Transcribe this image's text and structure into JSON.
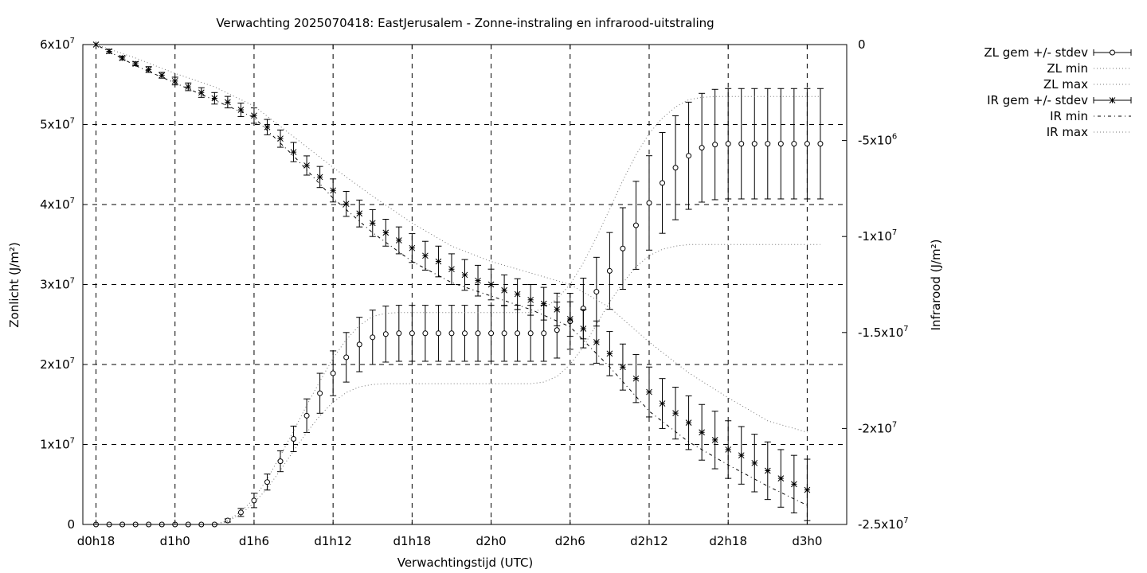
{
  "chart_data": {
    "type": "line",
    "title": "Verwachting 2025070418: EastJerusalem - Zonne-instraling en infrarood-uitstraling",
    "xlabel": "Verwachtingstijd (UTC)",
    "ylabel_left": "Zonlicht (J/m²)",
    "ylabel_right": "Infrarood (J/m²)",
    "x_unit": "hours since d0h18",
    "xlim": [
      -1,
      57
    ],
    "ylim_left": [
      0,
      60000000
    ],
    "ylim_right": [
      -25000000,
      0
    ],
    "grid": true,
    "legend_position": "outside-top-right",
    "x_ticks": [
      {
        "x": 0,
        "label": "d0h18"
      },
      {
        "x": 6,
        "label": "d1h0"
      },
      {
        "x": 12,
        "label": "d1h6"
      },
      {
        "x": 18,
        "label": "d1h12"
      },
      {
        "x": 24,
        "label": "d1h18"
      },
      {
        "x": 30,
        "label": "d2h0"
      },
      {
        "x": 36,
        "label": "d2h6"
      },
      {
        "x": 42,
        "label": "d2h12"
      },
      {
        "x": 48,
        "label": "d2h18"
      },
      {
        "x": 54,
        "label": "d3h0"
      }
    ],
    "y_left_ticks": [
      {
        "v": 0,
        "base": "0",
        "exp": ""
      },
      {
        "v": 10000000,
        "base": "1x10",
        "exp": "7"
      },
      {
        "v": 20000000,
        "base": "2x10",
        "exp": "7"
      },
      {
        "v": 30000000,
        "base": "3x10",
        "exp": "7"
      },
      {
        "v": 40000000,
        "base": "4x10",
        "exp": "7"
      },
      {
        "v": 50000000,
        "base": "5x10",
        "exp": "7"
      },
      {
        "v": 60000000,
        "base": "6x10",
        "exp": "7"
      }
    ],
    "y_right_ticks": [
      {
        "v": 0,
        "base": "0",
        "exp": ""
      },
      {
        "v": -5000000,
        "base": "-5x10",
        "exp": "6"
      },
      {
        "v": -10000000,
        "base": "-1x10",
        "exp": "7"
      },
      {
        "v": -15000000,
        "base": "-1.5x10",
        "exp": "7"
      },
      {
        "v": -20000000,
        "base": "-2x10",
        "exp": "7"
      },
      {
        "v": -25000000,
        "base": "-2.5x10",
        "exp": "7"
      }
    ],
    "series": [
      {
        "name": "ZL gem +/- stdev",
        "axis": "left",
        "marker": "circle",
        "points": [
          [
            0,
            0,
            0
          ],
          [
            1,
            0,
            0
          ],
          [
            2,
            0,
            0
          ],
          [
            3,
            0,
            0
          ],
          [
            4,
            0,
            0
          ],
          [
            5,
            0,
            0
          ],
          [
            6,
            0,
            0
          ],
          [
            7,
            0,
            0
          ],
          [
            8,
            0,
            0
          ],
          [
            9,
            0,
            0
          ],
          [
            10,
            500000,
            200000
          ],
          [
            11,
            1500000,
            500000
          ],
          [
            12,
            3000000,
            900000
          ],
          [
            13,
            5300000,
            1000000
          ],
          [
            14,
            7900000,
            1300000
          ],
          [
            15,
            10700000,
            1600000
          ],
          [
            16,
            13600000,
            2100000
          ],
          [
            17,
            16400000,
            2500000
          ],
          [
            18,
            18900000,
            2800000
          ],
          [
            19,
            20900000,
            3100000
          ],
          [
            20,
            22500000,
            3400000
          ],
          [
            21,
            23400000,
            3400000
          ],
          [
            22,
            23800000,
            3500000
          ],
          [
            23,
            23900000,
            3500000
          ],
          [
            24,
            23900000,
            3500000
          ],
          [
            25,
            23900000,
            3500000
          ],
          [
            26,
            23900000,
            3500000
          ],
          [
            27,
            23900000,
            3500000
          ],
          [
            28,
            23900000,
            3500000
          ],
          [
            29,
            23900000,
            3500000
          ],
          [
            30,
            23900000,
            3500000
          ],
          [
            31,
            23900000,
            3500000
          ],
          [
            32,
            23900000,
            3500000
          ],
          [
            33,
            23900000,
            3500000
          ],
          [
            34,
            23900000,
            3500000
          ],
          [
            35,
            24300000,
            3500000
          ],
          [
            36,
            25400000,
            3500000
          ],
          [
            37,
            27000000,
            3800000
          ],
          [
            38,
            29100000,
            4300000
          ],
          [
            39,
            31700000,
            4800000
          ],
          [
            40,
            34500000,
            5100000
          ],
          [
            41,
            37400000,
            5500000
          ],
          [
            42,
            40200000,
            5900000
          ],
          [
            43,
            42700000,
            6300000
          ],
          [
            44,
            44600000,
            6500000
          ],
          [
            45,
            46100000,
            6700000
          ],
          [
            46,
            47100000,
            6800000
          ],
          [
            47,
            47500000,
            6900000
          ],
          [
            48,
            47600000,
            6900000
          ],
          [
            49,
            47600000,
            6900000
          ],
          [
            50,
            47600000,
            6900000
          ],
          [
            51,
            47600000,
            6900000
          ],
          [
            52,
            47600000,
            6900000
          ],
          [
            53,
            47600000,
            6900000
          ],
          [
            54,
            47600000,
            6900000
          ],
          [
            55,
            47600000,
            6900000
          ]
        ]
      },
      {
        "name": "ZL min",
        "axis": "left",
        "style": "dotted",
        "points": [
          [
            9,
            0
          ],
          [
            10,
            400000
          ],
          [
            11,
            1300000
          ],
          [
            12,
            2700000
          ],
          [
            13,
            4500000
          ],
          [
            14,
            6800000
          ],
          [
            15,
            9200000
          ],
          [
            16,
            11500000
          ],
          [
            17,
            13600000
          ],
          [
            18,
            15300000
          ],
          [
            19,
            16500000
          ],
          [
            20,
            17200000
          ],
          [
            21,
            17500000
          ],
          [
            22,
            17600000
          ],
          [
            23,
            17600000
          ],
          [
            30,
            17600000
          ],
          [
            33,
            17600000
          ],
          [
            34,
            17800000
          ],
          [
            35,
            18500000
          ],
          [
            36,
            20000000
          ],
          [
            37,
            22200000
          ],
          [
            38,
            25000000
          ],
          [
            39,
            27800000
          ],
          [
            40,
            30200000
          ],
          [
            41,
            32200000
          ],
          [
            42,
            33600000
          ],
          [
            43,
            34400000
          ],
          [
            44,
            34800000
          ],
          [
            45,
            35000000
          ],
          [
            47,
            35000000
          ],
          [
            50,
            35000000
          ],
          [
            55,
            35000000
          ]
        ]
      },
      {
        "name": "ZL max",
        "axis": "left",
        "style": "dotted",
        "points": [
          [
            9,
            0
          ],
          [
            10,
            500000
          ],
          [
            11,
            1600000
          ],
          [
            12,
            3200000
          ],
          [
            13,
            5700000
          ],
          [
            14,
            8600000
          ],
          [
            15,
            11700000
          ],
          [
            16,
            14900000
          ],
          [
            17,
            17900000
          ],
          [
            18,
            20800000
          ],
          [
            19,
            23100000
          ],
          [
            20,
            24900000
          ],
          [
            21,
            26000000
          ],
          [
            22,
            26400000
          ],
          [
            23,
            26500000
          ],
          [
            33,
            26500000
          ],
          [
            34,
            27000000
          ],
          [
            35,
            28200000
          ],
          [
            36,
            30000000
          ],
          [
            37,
            32700000
          ],
          [
            38,
            35900000
          ],
          [
            39,
            39400000
          ],
          [
            40,
            43000000
          ],
          [
            41,
            46200000
          ],
          [
            42,
            48900000
          ],
          [
            43,
            50800000
          ],
          [
            44,
            52200000
          ],
          [
            45,
            53100000
          ],
          [
            46,
            53400000
          ],
          [
            47,
            53500000
          ],
          [
            55,
            53500000
          ]
        ]
      },
      {
        "name": "IR gem +/- stdev",
        "axis": "right",
        "marker": "star",
        "points": [
          [
            0,
            0,
            0
          ],
          [
            1,
            -350000,
            100000
          ],
          [
            2,
            -700000,
            100000
          ],
          [
            3,
            -1000000,
            100000
          ],
          [
            4,
            -1300000,
            150000
          ],
          [
            5,
            -1600000,
            150000
          ],
          [
            6,
            -1900000,
            200000
          ],
          [
            7,
            -2200000,
            200000
          ],
          [
            8,
            -2500000,
            250000
          ],
          [
            9,
            -2800000,
            300000
          ],
          [
            10,
            -3000000,
            300000
          ],
          [
            11,
            -3400000,
            350000
          ],
          [
            12,
            -3700000,
            400000
          ],
          [
            13,
            -4300000,
            400000
          ],
          [
            14,
            -4900000,
            450000
          ],
          [
            15,
            -5600000,
            500000
          ],
          [
            16,
            -6300000,
            500000
          ],
          [
            17,
            -6900000,
            550000
          ],
          [
            18,
            -7600000,
            600000
          ],
          [
            19,
            -8300000,
            650000
          ],
          [
            20,
            -8800000,
            700000
          ],
          [
            21,
            -9300000,
            700000
          ],
          [
            22,
            -9800000,
            700000
          ],
          [
            23,
            -10200000,
            700000
          ],
          [
            24,
            -10600000,
            750000
          ],
          [
            25,
            -11000000,
            750000
          ],
          [
            26,
            -11300000,
            800000
          ],
          [
            27,
            -11700000,
            800000
          ],
          [
            28,
            -12000000,
            800000
          ],
          [
            29,
            -12300000,
            800000
          ],
          [
            30,
            -12500000,
            800000
          ],
          [
            31,
            -12800000,
            800000
          ],
          [
            32,
            -13000000,
            800000
          ],
          [
            33,
            -13300000,
            800000
          ],
          [
            34,
            -13500000,
            850000
          ],
          [
            35,
            -13800000,
            850000
          ],
          [
            36,
            -14300000,
            900000
          ],
          [
            37,
            -14800000,
            1000000
          ],
          [
            38,
            -15500000,
            1100000
          ],
          [
            39,
            -16100000,
            1150000
          ],
          [
            40,
            -16800000,
            1200000
          ],
          [
            41,
            -17400000,
            1250000
          ],
          [
            42,
            -18100000,
            1300000
          ],
          [
            43,
            -18700000,
            1300000
          ],
          [
            44,
            -19200000,
            1350000
          ],
          [
            45,
            -19700000,
            1400000
          ],
          [
            46,
            -20200000,
            1450000
          ],
          [
            47,
            -20600000,
            1500000
          ],
          [
            48,
            -21100000,
            1500000
          ],
          [
            49,
            -21400000,
            1500000
          ],
          [
            50,
            -21800000,
            1500000
          ],
          [
            51,
            -22200000,
            1500000
          ],
          [
            52,
            -22600000,
            1500000
          ],
          [
            53,
            -22900000,
            1500000
          ],
          [
            54,
            -23200000,
            1600000
          ]
        ]
      },
      {
        "name": "IR min",
        "axis": "right",
        "style": "dashdot",
        "points": [
          [
            0,
            0
          ],
          [
            3,
            -1100000
          ],
          [
            6,
            -2000000
          ],
          [
            9,
            -2900000
          ],
          [
            12,
            -3800000
          ],
          [
            15,
            -5800000
          ],
          [
            18,
            -8000000
          ],
          [
            21,
            -9800000
          ],
          [
            24,
            -11300000
          ],
          [
            27,
            -12400000
          ],
          [
            30,
            -13100000
          ],
          [
            33,
            -13800000
          ],
          [
            36,
            -14700000
          ],
          [
            39,
            -16800000
          ],
          [
            42,
            -19100000
          ],
          [
            45,
            -20700000
          ],
          [
            48,
            -21900000
          ],
          [
            51,
            -23000000
          ],
          [
            54,
            -24000000
          ]
        ]
      },
      {
        "name": "IR max",
        "axis": "right",
        "style": "dotted",
        "points": [
          [
            0,
            0
          ],
          [
            3,
            -700000
          ],
          [
            6,
            -1500000
          ],
          [
            9,
            -2200000
          ],
          [
            12,
            -3200000
          ],
          [
            15,
            -4800000
          ],
          [
            18,
            -6400000
          ],
          [
            21,
            -7900000
          ],
          [
            24,
            -9300000
          ],
          [
            27,
            -10500000
          ],
          [
            30,
            -11300000
          ],
          [
            33,
            -11900000
          ],
          [
            36,
            -12500000
          ],
          [
            39,
            -13700000
          ],
          [
            42,
            -15500000
          ],
          [
            45,
            -17100000
          ],
          [
            48,
            -18400000
          ],
          [
            51,
            -19600000
          ],
          [
            54,
            -20200000
          ]
        ]
      }
    ]
  }
}
